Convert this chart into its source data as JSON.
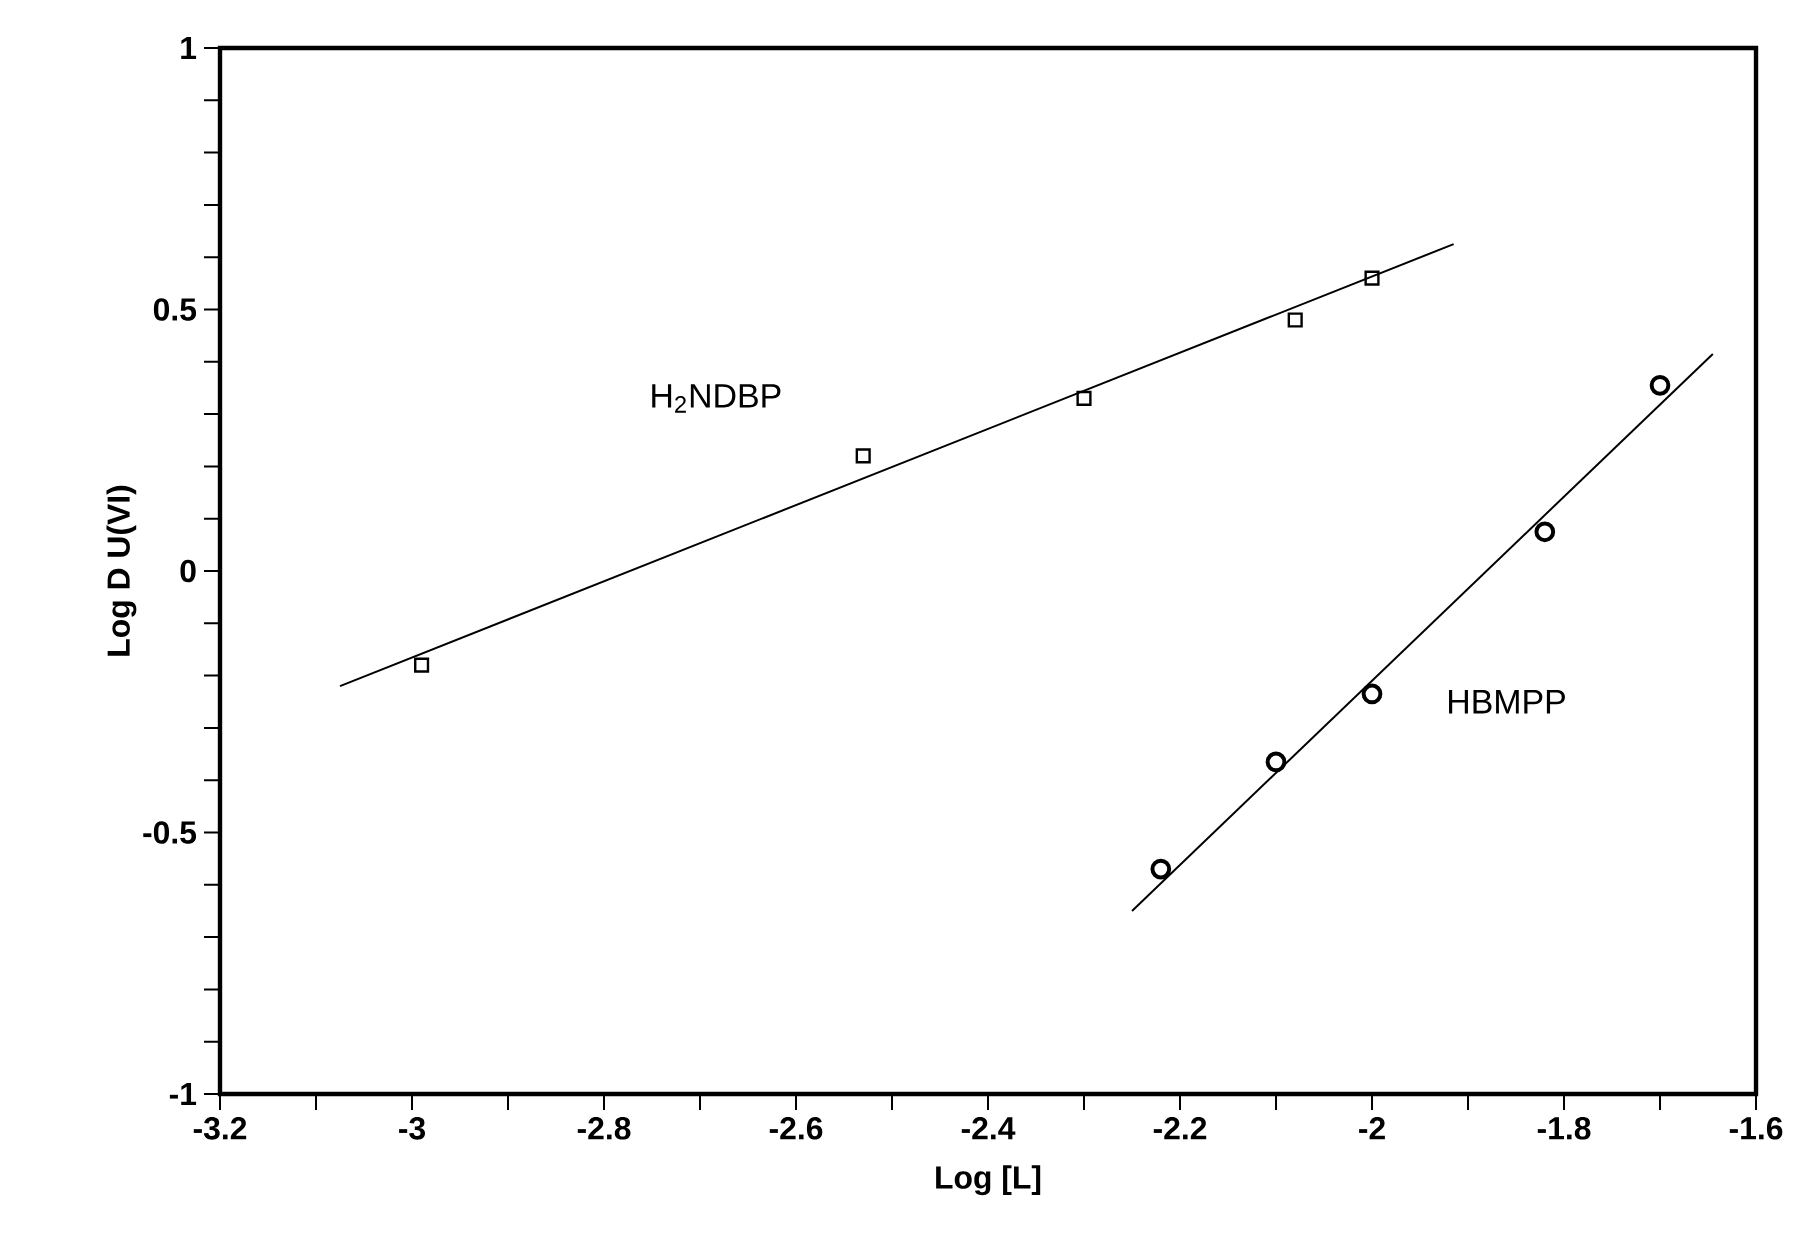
{
  "chart_data": {
    "type": "scatter",
    "xlabel": "Log [L]",
    "ylabel": "Log D U(VI)",
    "xlim": [
      -3.2,
      -1.6
    ],
    "ylim": [
      -1,
      1
    ],
    "xticks": [
      -3.2,
      {
        "value": -3.1,
        "label": null
      },
      -3,
      {
        "value": -2.9,
        "label": null
      },
      -2.8,
      {
        "value": -2.7,
        "label": null
      },
      -2.6,
      {
        "value": -2.5,
        "label": null
      },
      -2.4,
      {
        "value": -2.3,
        "label": null
      },
      -2.2,
      {
        "value": -2.1,
        "label": null
      },
      -2,
      {
        "value": -1.9,
        "label": null
      },
      -1.8,
      {
        "value": -1.7,
        "label": null
      },
      -1.6
    ],
    "yticks": [
      -1,
      {
        "value": -0.9,
        "label": null
      },
      {
        "value": -0.8,
        "label": null
      },
      {
        "value": -0.7,
        "label": null
      },
      {
        "value": -0.6,
        "label": null
      },
      -0.5,
      {
        "value": -0.4,
        "label": null
      },
      {
        "value": -0.3,
        "label": null
      },
      {
        "value": -0.2,
        "label": null
      },
      {
        "value": -0.1,
        "label": null
      },
      0,
      {
        "value": 0.1,
        "label": null
      },
      {
        "value": 0.2,
        "label": null
      },
      {
        "value": 0.3,
        "label": null
      },
      {
        "value": 0.4,
        "label": null
      },
      0.5,
      {
        "value": 0.6,
        "label": null
      },
      {
        "value": 0.7,
        "label": null
      },
      {
        "value": 0.8,
        "label": null
      },
      {
        "value": 0.9,
        "label": null
      },
      1
    ],
    "grid": false,
    "series": [
      {
        "name": "H$_{2}$NDBP",
        "color": "#000000",
        "marker": "square",
        "x": [
          -2.99,
          -2.53,
          -2.3,
          -2.08,
          -2.0
        ],
        "values": [
          -0.18,
          0.22,
          0.33,
          0.48,
          0.56
        ]
      },
      {
        "type": "line",
        "color": "#000000",
        "marker": "none",
        "x": [
          -3.075,
          -1.915
        ],
        "values": [
          -0.22,
          0.625
        ]
      },
      {
        "name": "HBMPP",
        "color": "#000000",
        "marker": "circle",
        "x": [
          -2.22,
          -2.1,
          -2.0,
          -1.82,
          -1.7
        ],
        "values": [
          -0.57,
          -0.365,
          -0.235,
          0.075,
          0.355
        ]
      },
      {
        "type": "line",
        "color": "#000000",
        "marker": "none",
        "x": [
          -2.25,
          -1.645
        ],
        "values": [
          -0.65,
          0.415
        ]
      }
    ]
  }
}
